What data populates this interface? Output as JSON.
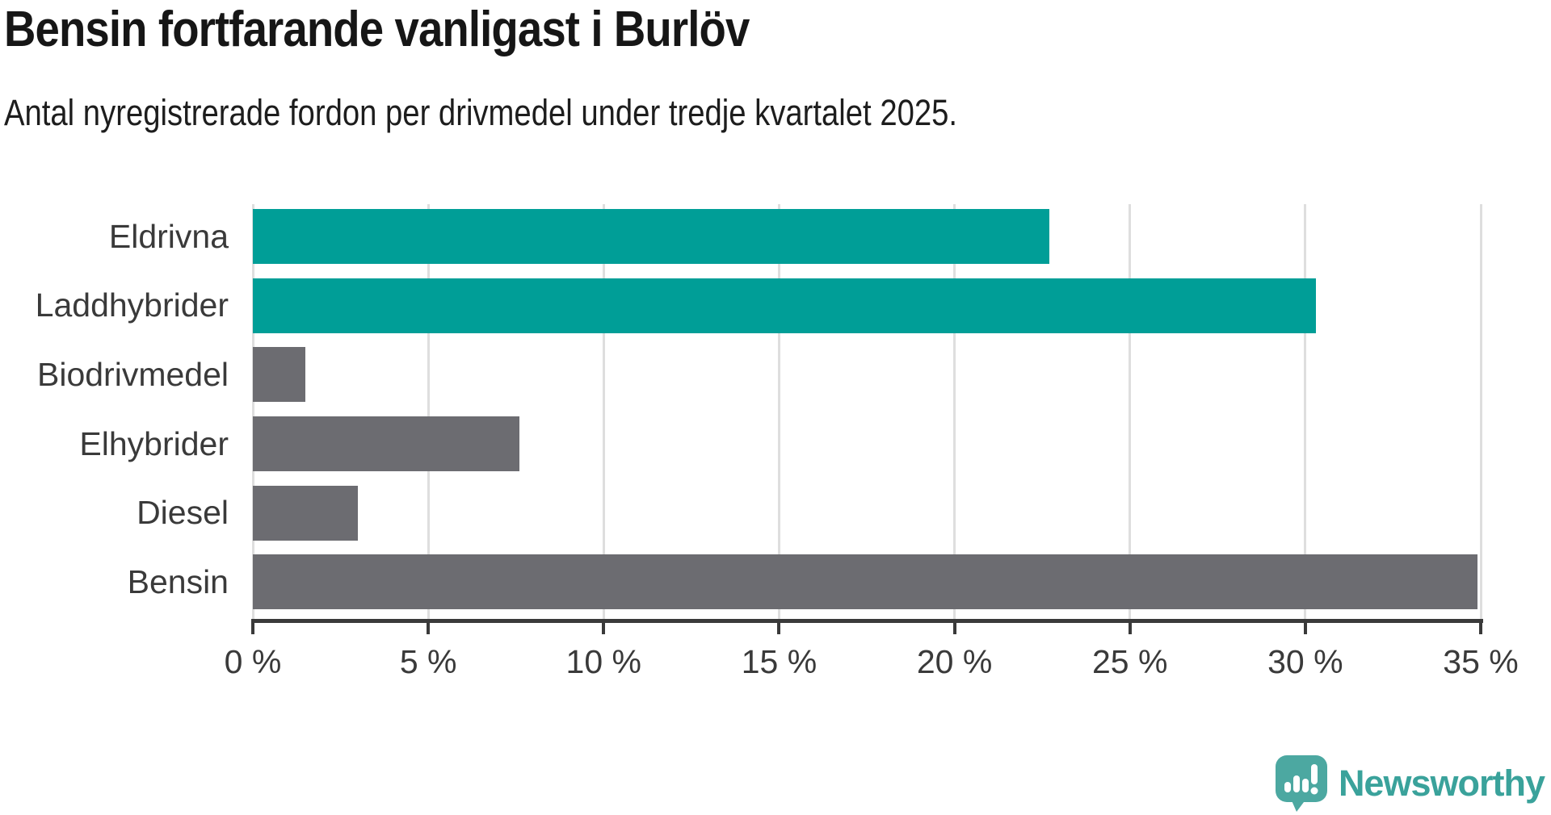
{
  "colors": {
    "teal": "#009E97",
    "gray": "#6C6C71",
    "grid": "#DEDEDE",
    "axis": "#3A3A3A",
    "title_text": "#161616",
    "subtitle_text": "#1D1D1D",
    "logo_icon": "#4CA8A1",
    "logo_text": "#3AA29B",
    "background": "#FFFFFF"
  },
  "chart_data": {
    "type": "bar",
    "orientation": "horizontal",
    "title": "Bensin fortfarande vanligast i Burlöv",
    "subtitle": "Antal nyregistrerade fordon per drivmedel under tredje kvartalet 2025.",
    "categories": [
      "Eldrivna",
      "Laddhybrider",
      "Biodrivmedel",
      "Elhybrider",
      "Diesel",
      "Bensin"
    ],
    "values": [
      22.7,
      30.3,
      1.5,
      7.6,
      3.0,
      34.9
    ],
    "unit": "%",
    "bar_colors": [
      "teal",
      "teal",
      "gray",
      "gray",
      "gray",
      "gray"
    ],
    "xlabel": "",
    "ylabel": "",
    "xlim": [
      0,
      35
    ],
    "xticks": [
      {
        "value": 0,
        "label": "0 %"
      },
      {
        "value": 5,
        "label": "5 %"
      },
      {
        "value": 10,
        "label": "10 %"
      },
      {
        "value": 15,
        "label": "15 %"
      },
      {
        "value": 20,
        "label": "20 %"
      },
      {
        "value": 25,
        "label": "25 %"
      },
      {
        "value": 30,
        "label": "30 %"
      },
      {
        "value": 35,
        "label": "35 %"
      }
    ],
    "grid": "vertical",
    "legend": "none"
  },
  "footer": {
    "brand": "Newsworthy"
  }
}
